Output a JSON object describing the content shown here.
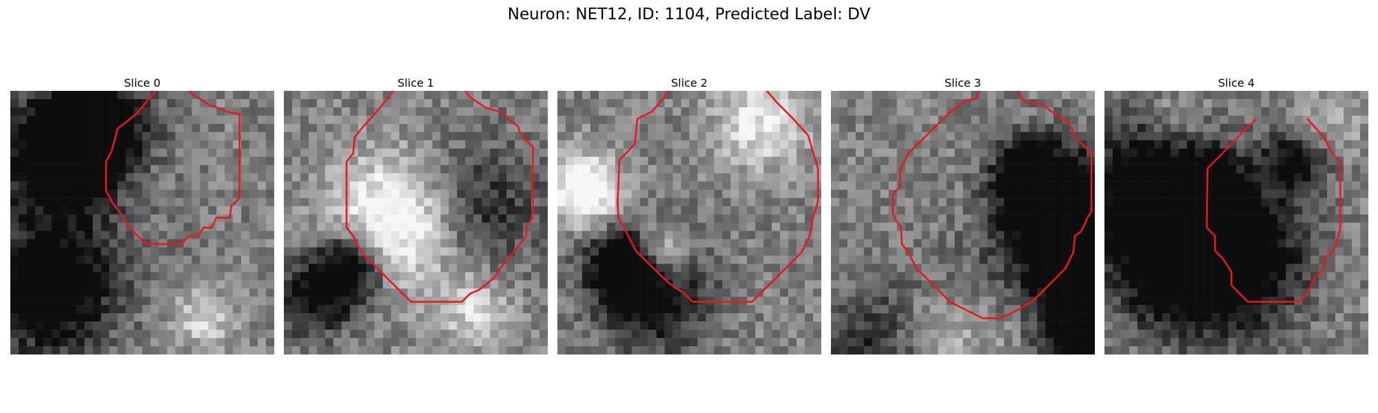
{
  "figure": {
    "title": "Neuron: NET12, ID: 1104, Predicted Label: DV"
  },
  "panels": [
    {
      "title": "Slice 0",
      "contour": [
        [
          17.6,
          0
        ],
        [
          15.3,
          2.8
        ],
        [
          13,
          4.6
        ],
        [
          12.3,
          7.3
        ],
        [
          11.6,
          8.6
        ],
        [
          11.6,
          10.3
        ],
        [
          11.6,
          12.1
        ],
        [
          12.4,
          13.6
        ],
        [
          13.2,
          14.6
        ],
        [
          13.8,
          15.6
        ],
        [
          14.4,
          16.6
        ],
        [
          16.5,
          18.6
        ],
        [
          20.8,
          18.6
        ],
        [
          21.6,
          17.6
        ],
        [
          22.8,
          17.6
        ],
        [
          23.4,
          16.6
        ],
        [
          24.4,
          16.6
        ],
        [
          25,
          15.4
        ],
        [
          26.6,
          15.4
        ],
        [
          26.8,
          14
        ],
        [
          27.8,
          13
        ],
        [
          27.8,
          2.8
        ],
        [
          26.5,
          2.6
        ],
        [
          25.6,
          2.2
        ],
        [
          24.3,
          1.8
        ],
        [
          22.4,
          0.6
        ],
        [
          21.6,
          0
        ]
      ]
    },
    {
      "title": "Slice 1",
      "contour": [
        [
          13.3,
          0
        ],
        [
          11.2,
          2.6
        ],
        [
          9.4,
          4.6
        ],
        [
          8.6,
          5.6
        ],
        [
          8.4,
          7.6
        ],
        [
          7.6,
          8.6
        ],
        [
          7.6,
          16.6
        ],
        [
          8.4,
          17.6
        ],
        [
          9.4,
          19.6
        ],
        [
          11.4,
          21.6
        ],
        [
          13.4,
          23.6
        ],
        [
          15.4,
          25.6
        ],
        [
          21.6,
          25.6
        ],
        [
          22.6,
          24.6
        ],
        [
          23.6,
          24.2
        ],
        [
          24.4,
          23.6
        ],
        [
          25.6,
          22.6
        ],
        [
          26.2,
          21.6
        ],
        [
          27,
          20.6
        ],
        [
          28.6,
          18.6
        ],
        [
          29.4,
          17.6
        ],
        [
          29.4,
          16.4
        ],
        [
          30.2,
          15.4
        ],
        [
          30.2,
          6.8
        ],
        [
          29.4,
          6
        ],
        [
          28.6,
          5
        ],
        [
          28.4,
          4.3
        ],
        [
          27.3,
          3.5
        ],
        [
          26.4,
          2.6
        ],
        [
          24.4,
          2
        ],
        [
          22.6,
          0.8
        ],
        [
          22,
          0
        ]
      ]
    },
    {
      "title": "Slice 2",
      "contour": [
        [
          13.6,
          0
        ],
        [
          11.5,
          2.5
        ],
        [
          9.7,
          3.4
        ],
        [
          9.4,
          6.4
        ],
        [
          8.5,
          7.4
        ],
        [
          7.5,
          8.4
        ],
        [
          7.4,
          11.4
        ],
        [
          7.3,
          13.4
        ],
        [
          7.4,
          15.4
        ],
        [
          8.5,
          17.4
        ],
        [
          9.5,
          19.4
        ],
        [
          11.5,
          21.4
        ],
        [
          13.6,
          23.4
        ],
        [
          15.4,
          24.6
        ],
        [
          16.4,
          25.6
        ],
        [
          23.6,
          25.6
        ],
        [
          25.6,
          23.6
        ],
        [
          27.6,
          21.6
        ],
        [
          29.6,
          19.6
        ],
        [
          30.6,
          17.6
        ],
        [
          31,
          15.4
        ],
        [
          31.6,
          13.4
        ],
        [
          31.6,
          9.4
        ],
        [
          31,
          7.4
        ],
        [
          30.4,
          5.4
        ],
        [
          28.6,
          3.4
        ],
        [
          26.6,
          1.4
        ],
        [
          25.4,
          0
        ]
      ]
    },
    {
      "title": "Slice 3",
      "contour": [
        [
          18,
          0
        ],
        [
          17.6,
          1
        ],
        [
          16.4,
          1.1
        ],
        [
          14.4,
          2.6
        ],
        [
          12.4,
          4.6
        ],
        [
          10.4,
          6.6
        ],
        [
          9.4,
          7.6
        ],
        [
          8.4,
          9.6
        ],
        [
          8.4,
          10.4
        ],
        [
          8.4,
          11.6
        ],
        [
          7.5,
          12.6
        ],
        [
          7.5,
          14.8
        ],
        [
          7.8,
          15.6
        ],
        [
          8.5,
          16.6
        ],
        [
          8.6,
          18.6
        ],
        [
          9.4,
          19.6
        ],
        [
          10.4,
          21.6
        ],
        [
          12.5,
          23.6
        ],
        [
          14.4,
          25.6
        ],
        [
          16.4,
          26.6
        ],
        [
          18.4,
          27.6
        ],
        [
          20.6,
          27.6
        ],
        [
          22.6,
          26.6
        ],
        [
          24.4,
          25.6
        ],
        [
          25.4,
          24.6
        ],
        [
          26.4,
          23.6
        ],
        [
          27.4,
          22.6
        ],
        [
          28.4,
          21.6
        ],
        [
          29.4,
          19.6
        ],
        [
          29.6,
          17.6
        ],
        [
          30.4,
          17
        ],
        [
          31.1,
          15.4
        ],
        [
          31.6,
          14.6
        ],
        [
          31.6,
          7.6
        ],
        [
          30.6,
          6.6
        ],
        [
          29.6,
          5.6
        ],
        [
          29.2,
          4.6
        ],
        [
          28.6,
          3.6
        ],
        [
          27.6,
          3.1
        ],
        [
          26.6,
          2.4
        ],
        [
          25.6,
          1.6
        ],
        [
          23.6,
          1.4
        ],
        [
          22.6,
          0
        ]
      ]
    },
    {
      "title": "Slice 4",
      "contour": [
        [
          18.4,
          3.4
        ],
        [
          16.4,
          5.4
        ],
        [
          14.6,
          7.3
        ],
        [
          12.5,
          9.4
        ],
        [
          12.4,
          16.6
        ],
        [
          13.4,
          17.6
        ],
        [
          13.4,
          19.4
        ],
        [
          14.4,
          20.4
        ],
        [
          15.4,
          22
        ],
        [
          15.4,
          23.6
        ],
        [
          16.4,
          24.6
        ],
        [
          17.4,
          25.6
        ],
        [
          23.6,
          25.6
        ],
        [
          24.6,
          24.6
        ],
        [
          25.6,
          22.6
        ],
        [
          26.6,
          21.6
        ],
        [
          26.6,
          20.4
        ],
        [
          27.6,
          19.6
        ],
        [
          28.4,
          17.6
        ],
        [
          28.6,
          16.6
        ],
        [
          28.6,
          8.6
        ],
        [
          27.6,
          7.6
        ],
        [
          26.6,
          5.6
        ],
        [
          24.6,
          3.4
        ]
      ]
    }
  ]
}
